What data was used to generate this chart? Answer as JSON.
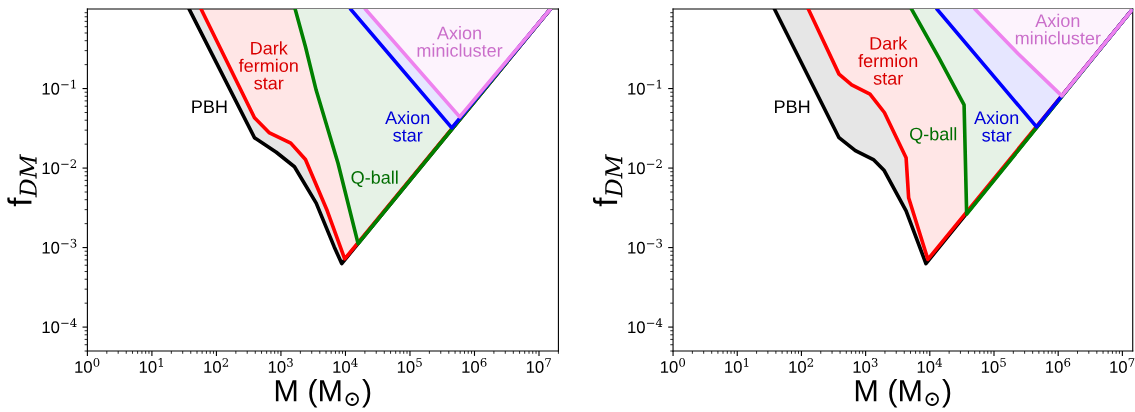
{
  "chart_data": [
    {
      "type": "area",
      "xlabel": "M (M$_{⊙}$)",
      "ylabel": "f$_{DM}$",
      "log": "xy",
      "grid": false,
      "legend": false,
      "xlim": [
        1,
        20000000
      ],
      "ylim": [
        5e-05,
        1
      ],
      "xticks": [
        {
          "value": 1,
          "label": "10$^{0}$"
        },
        {
          "value": 10,
          "label": "10$^{1}$"
        },
        {
          "value": 100,
          "label": "10$^{2}$"
        },
        {
          "value": 1000,
          "label": "10$^{3}$"
        },
        {
          "value": 10000,
          "label": "10$^{4}$"
        },
        {
          "value": 100000,
          "label": "10$^{5}$"
        },
        {
          "value": 1000000,
          "label": "10$^{6}$"
        },
        {
          "value": 10000000,
          "label": "10$^{7}$"
        }
      ],
      "yticks": [
        {
          "value": 0.0001,
          "label": "10$^{−4}$"
        },
        {
          "value": 0.001,
          "label": "10$^{−3}$"
        },
        {
          "value": 0.01,
          "label": "10$^{−2}$"
        },
        {
          "value": 0.1,
          "label": "10$^{−1}$"
        }
      ],
      "series": [
        {
          "name": "PBH",
          "color": "#000000",
          "x": [
            37.8,
            389,
            847,
            1620,
            3520,
            6700,
            8750,
            15000000
          ],
          "values": [
            1,
            0.0241,
            0.0158,
            0.0104,
            0.00363,
            0.00102,
            0.00063,
            1
          ]
        },
        {
          "name": "Dark\nfermion\nstar",
          "color": "#ff0000",
          "x": [
            57.8,
            389,
            653,
            1420,
            2400,
            5220,
            9740,
            15000000
          ],
          "values": [
            1,
            0.043,
            0.028,
            0.0206,
            0.0128,
            0.0029,
            0.00072,
            1
          ]
        },
        {
          "name": "Q-ball",
          "color": "#008000",
          "x": [
            1660,
            2400,
            3520,
            7670,
            15700,
            15000000
          ],
          "values": [
            1,
            0.336,
            0.095,
            0.0115,
            0.00112,
            1
          ]
        },
        {
          "name": "Axion\nstar",
          "color": "#0000ff",
          "x": [
            12000,
            445000,
            15000000
          ],
          "values": [
            1,
            0.032,
            1
          ]
        },
        {
          "name": "Axion\nminicluster",
          "color": "#ee82ee",
          "x": [
            20300,
            590000,
            15000000
          ],
          "values": [
            1,
            0.044,
            1
          ]
        }
      ]
    },
    {
      "type": "area",
      "xlabel": "M (M$_{⊙}$)",
      "ylabel": "f$_{DM}$",
      "log": "xy",
      "grid": false,
      "legend": false,
      "xlim": [
        1,
        14500000
      ],
      "ylim": [
        5e-05,
        1
      ],
      "xticks": [
        {
          "value": 1,
          "label": "10$^{0}$"
        },
        {
          "value": 10,
          "label": "10$^{1}$"
        },
        {
          "value": 100,
          "label": "10$^{2}$"
        },
        {
          "value": 1000,
          "label": "10$^{3}$"
        },
        {
          "value": 10000,
          "label": "10$^{4}$"
        },
        {
          "value": 100000,
          "label": "10$^{5}$"
        },
        {
          "value": 1000000,
          "label": "10$^{6}$"
        },
        {
          "value": 10000000,
          "label": "10$^{7}$"
        }
      ],
      "yticks": [
        {
          "value": 0.0001,
          "label": "10$^{−4}$"
        },
        {
          "value": 0.001,
          "label": "10$^{−3}$"
        },
        {
          "value": 0.01,
          "label": "10$^{−2}$"
        },
        {
          "value": 0.1,
          "label": "10$^{−1}$"
        }
      ],
      "series": [
        {
          "name": "PBH",
          "color": "#000000",
          "x": [
            38,
            385,
            692,
            1320,
            1950,
            4270,
            8700,
            14500000
          ],
          "values": [
            1,
            0.0241,
            0.0166,
            0.0128,
            0.0093,
            0.0029,
            0.00063,
            1
          ]
        },
        {
          "name": "Dark\nfermion\nstar",
          "color": "#ff0000",
          "x": [
            128,
            385,
            607,
            1170,
            1960,
            4270,
            4680,
            9330,
            14500000
          ],
          "values": [
            1,
            0.152,
            0.111,
            0.085,
            0.05,
            0.0135,
            0.00423,
            0.00071,
            1
          ]
        },
        {
          "name": "Q-ball",
          "color": "#008000",
          "x": [
            5190,
            13800,
            34200,
            37500,
            14500000
          ],
          "values": [
            1,
            0.245,
            0.0622,
            0.00263,
            1
          ]
        },
        {
          "name": "Axion\nstar",
          "color": "#0000ff",
          "x": [
            12900,
            460000,
            14500000
          ],
          "values": [
            1,
            0.033,
            1
          ]
        },
        {
          "name": "Axion\nminicluster",
          "color": "#ee82ee",
          "x": [
            50400,
            240000,
            1140000,
            14500000
          ],
          "values": [
            1,
            0.272,
            0.081,
            1
          ]
        }
      ]
    }
  ]
}
